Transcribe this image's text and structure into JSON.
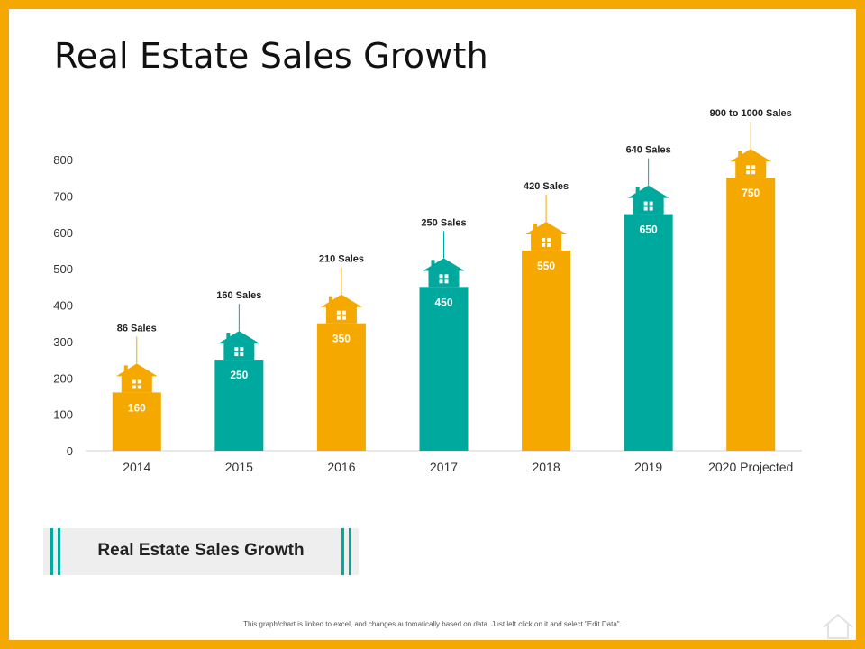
{
  "page": {
    "title": "Real Estate Sales Growth",
    "caption": "Real Estate Sales Growth",
    "footer_note": "This graph/chart is linked to excel, and changes automatically based on data. Just left click on it and select \"Edit Data\"."
  },
  "colors": {
    "frame": "#f5a800",
    "orange": "#f5a800",
    "teal": "#00a99d",
    "axis": "#d0d0d0"
  },
  "chart_data": {
    "type": "bar",
    "title": "",
    "xlabel": "",
    "ylabel": "",
    "ylim": [
      0,
      800
    ],
    "yticks": [
      0,
      100,
      200,
      300,
      400,
      500,
      600,
      700,
      800
    ],
    "grid": false,
    "categories": [
      "2014",
      "2015",
      "2016",
      "2017",
      "2018",
      "2019",
      "2020 Projected"
    ],
    "values": [
      160,
      250,
      350,
      450,
      550,
      650,
      750
    ],
    "value_labels": [
      "160",
      "250",
      "350",
      "450",
      "550",
      "650",
      "750"
    ],
    "annotations": [
      "86 Sales",
      "160 Sales",
      "210 Sales",
      "250 Sales",
      "420 Sales",
      "640 Sales",
      "900 to 1000 Sales"
    ],
    "bar_colors": [
      "orange",
      "teal",
      "orange",
      "teal",
      "orange",
      "teal",
      "orange"
    ],
    "marker_icon": "house-icon"
  }
}
